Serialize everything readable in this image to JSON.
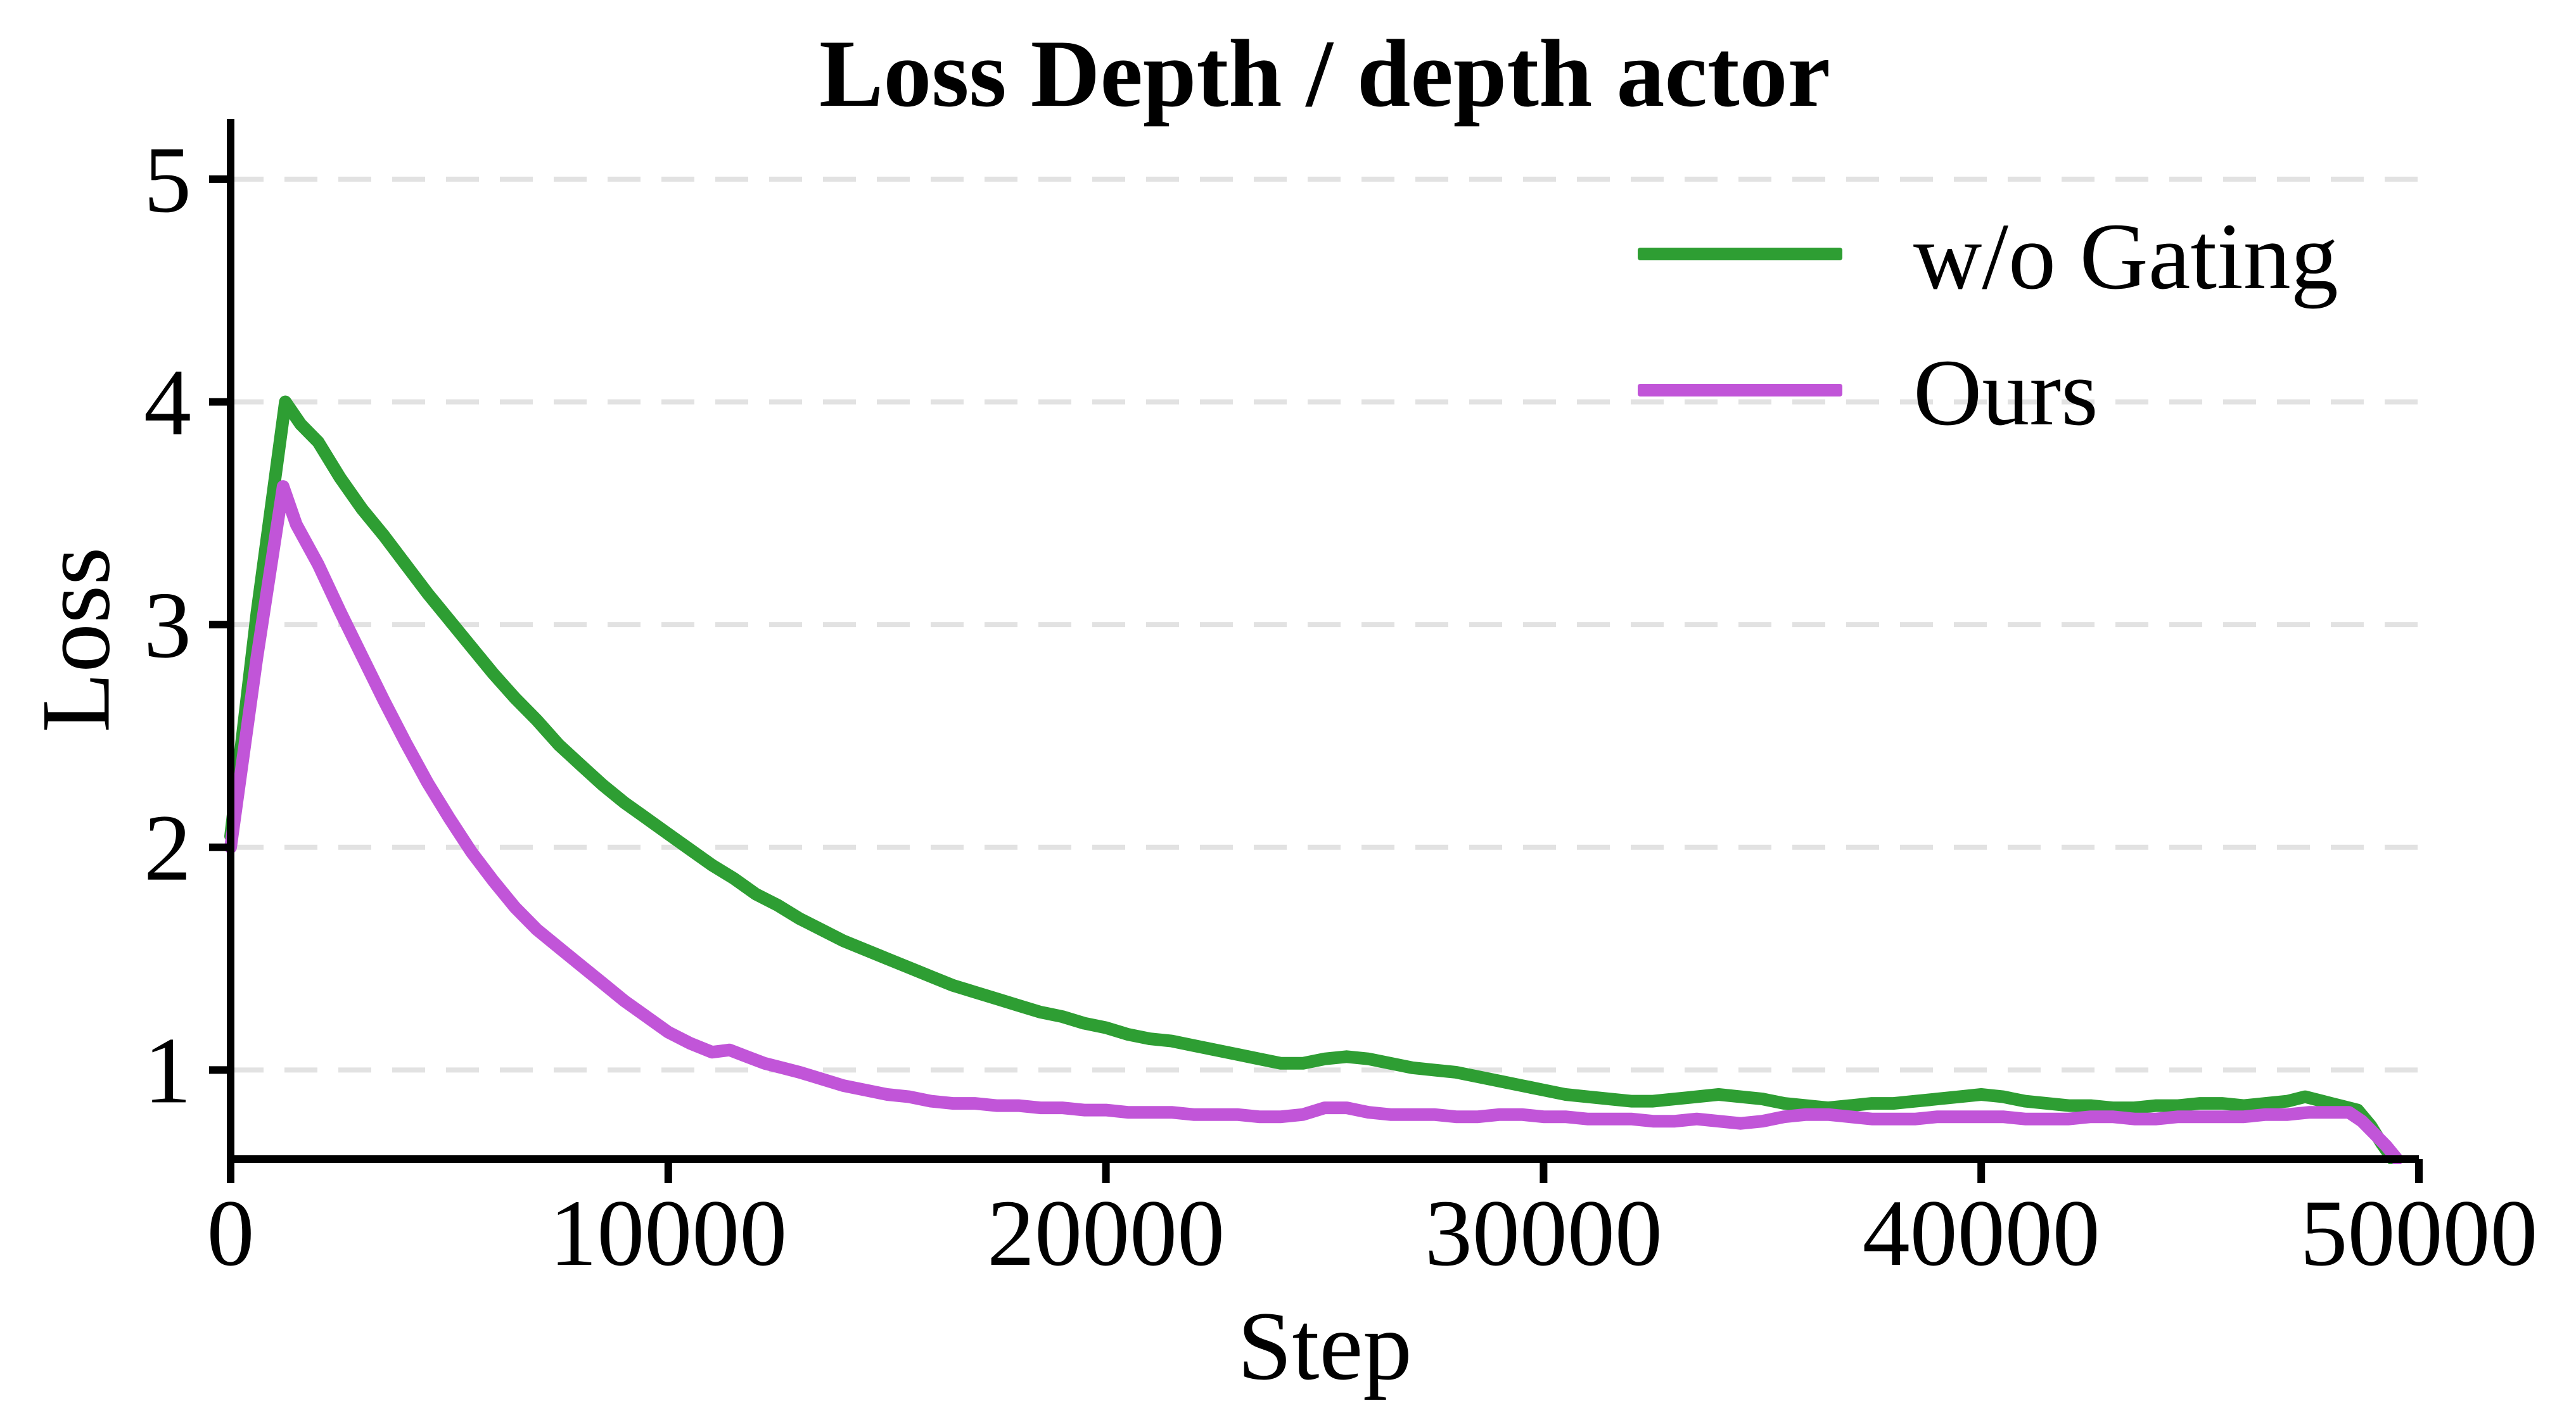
{
  "chart_data": {
    "type": "line",
    "title": "Loss Depth / depth actor",
    "xlabel": "Step",
    "ylabel": "Loss",
    "xlim": [
      0,
      50000
    ],
    "ylim": [
      0.6,
      5.27
    ],
    "xticks": [
      0,
      10000,
      20000,
      30000,
      40000,
      50000
    ],
    "xtick_labels": [
      "0",
      "10000",
      "20000",
      "30000",
      "40000",
      "50000"
    ],
    "yticks": [
      1,
      2,
      3,
      4,
      5
    ],
    "ytick_labels": [
      "1",
      "2",
      "3",
      "4",
      "5"
    ],
    "grid": {
      "axis": "y",
      "style": "dashed",
      "color": "#e2e2e2"
    },
    "axis_color": "#000000",
    "legend_position": "upper right",
    "series": [
      {
        "name": "w/o Gating",
        "color": "#2e9e33",
        "x": [
          0,
          600,
          1250,
          1600,
          2000,
          2500,
          3000,
          3500,
          4000,
          4500,
          5000,
          5500,
          6000,
          6500,
          7000,
          7500,
          8000,
          8500,
          9000,
          9500,
          10000,
          10500,
          11000,
          11500,
          12000,
          12500,
          13000,
          13500,
          14000,
          14500,
          15000,
          15500,
          16000,
          16500,
          17000,
          17500,
          18000,
          18500,
          19000,
          19500,
          20000,
          20500,
          21000,
          21500,
          22000,
          22500,
          23000,
          23500,
          24000,
          24500,
          25000,
          25500,
          26000,
          26500,
          27000,
          27500,
          28000,
          28500,
          29000,
          29500,
          30000,
          30500,
          31000,
          31500,
          32000,
          32500,
          33000,
          33500,
          34000,
          34500,
          35000,
          35500,
          36000,
          36500,
          37000,
          37500,
          38000,
          38500,
          39000,
          39500,
          40000,
          40500,
          41000,
          41500,
          42000,
          42500,
          43000,
          43500,
          44000,
          44500,
          45000,
          45500,
          46000,
          46500,
          47000,
          47400,
          47800,
          48200,
          48600,
          48900,
          49150,
          49400
        ],
        "y": [
          2.05,
          3.05,
          4.0,
          3.9,
          3.82,
          3.66,
          3.52,
          3.4,
          3.27,
          3.14,
          3.02,
          2.9,
          2.78,
          2.67,
          2.57,
          2.46,
          2.37,
          2.28,
          2.2,
          2.13,
          2.06,
          1.99,
          1.92,
          1.86,
          1.79,
          1.74,
          1.68,
          1.63,
          1.58,
          1.54,
          1.5,
          1.46,
          1.42,
          1.38,
          1.35,
          1.32,
          1.29,
          1.26,
          1.24,
          1.21,
          1.19,
          1.16,
          1.14,
          1.13,
          1.11,
          1.09,
          1.07,
          1.05,
          1.03,
          1.03,
          1.05,
          1.06,
          1.05,
          1.03,
          1.01,
          1.0,
          0.99,
          0.97,
          0.95,
          0.93,
          0.91,
          0.89,
          0.88,
          0.87,
          0.86,
          0.86,
          0.87,
          0.88,
          0.89,
          0.88,
          0.87,
          0.85,
          0.84,
          0.83,
          0.84,
          0.85,
          0.85,
          0.86,
          0.87,
          0.88,
          0.89,
          0.88,
          0.86,
          0.85,
          0.84,
          0.84,
          0.83,
          0.83,
          0.84,
          0.84,
          0.85,
          0.85,
          0.84,
          0.85,
          0.86,
          0.88,
          0.86,
          0.84,
          0.82,
          0.75,
          0.67,
          0.6
        ]
      },
      {
        "name": "Ours",
        "color": "#c155d8",
        "x": [
          0,
          600,
          1200,
          1500,
          2000,
          2500,
          3000,
          3500,
          4000,
          4500,
          5000,
          5500,
          6000,
          6500,
          7000,
          7500,
          8000,
          8500,
          9000,
          9500,
          10000,
          10500,
          11000,
          11400,
          11800,
          12200,
          12600,
          13000,
          13500,
          14000,
          14500,
          15000,
          15500,
          16000,
          16500,
          17000,
          17500,
          18000,
          18500,
          19000,
          19500,
          20000,
          20500,
          21000,
          21500,
          22000,
          22500,
          23000,
          23500,
          24000,
          24500,
          25000,
          25500,
          26000,
          26500,
          27000,
          27500,
          28000,
          28500,
          29000,
          29500,
          30000,
          30500,
          31000,
          31500,
          32000,
          32500,
          33000,
          33500,
          34000,
          34500,
          35000,
          35500,
          36000,
          36500,
          37000,
          37500,
          38000,
          38500,
          39000,
          39500,
          40000,
          40500,
          41000,
          41500,
          42000,
          42500,
          43000,
          43500,
          44000,
          44500,
          45000,
          45500,
          46000,
          46500,
          47000,
          47500,
          48000,
          48400,
          48700,
          49000,
          49250,
          49500
        ],
        "y": [
          2.0,
          2.85,
          3.62,
          3.45,
          3.27,
          3.06,
          2.86,
          2.66,
          2.47,
          2.29,
          2.13,
          1.98,
          1.85,
          1.73,
          1.63,
          1.55,
          1.47,
          1.39,
          1.31,
          1.24,
          1.17,
          1.12,
          1.08,
          1.09,
          1.06,
          1.03,
          1.01,
          0.99,
          0.96,
          0.93,
          0.91,
          0.89,
          0.88,
          0.86,
          0.85,
          0.85,
          0.84,
          0.84,
          0.83,
          0.83,
          0.82,
          0.82,
          0.81,
          0.81,
          0.81,
          0.8,
          0.8,
          0.8,
          0.79,
          0.79,
          0.8,
          0.83,
          0.83,
          0.81,
          0.8,
          0.8,
          0.8,
          0.79,
          0.79,
          0.8,
          0.8,
          0.79,
          0.79,
          0.78,
          0.78,
          0.78,
          0.77,
          0.77,
          0.78,
          0.77,
          0.76,
          0.77,
          0.79,
          0.8,
          0.8,
          0.79,
          0.78,
          0.78,
          0.78,
          0.79,
          0.79,
          0.79,
          0.79,
          0.78,
          0.78,
          0.78,
          0.79,
          0.79,
          0.78,
          0.78,
          0.79,
          0.79,
          0.79,
          0.79,
          0.8,
          0.8,
          0.81,
          0.81,
          0.81,
          0.77,
          0.71,
          0.66,
          0.6
        ]
      }
    ]
  }
}
